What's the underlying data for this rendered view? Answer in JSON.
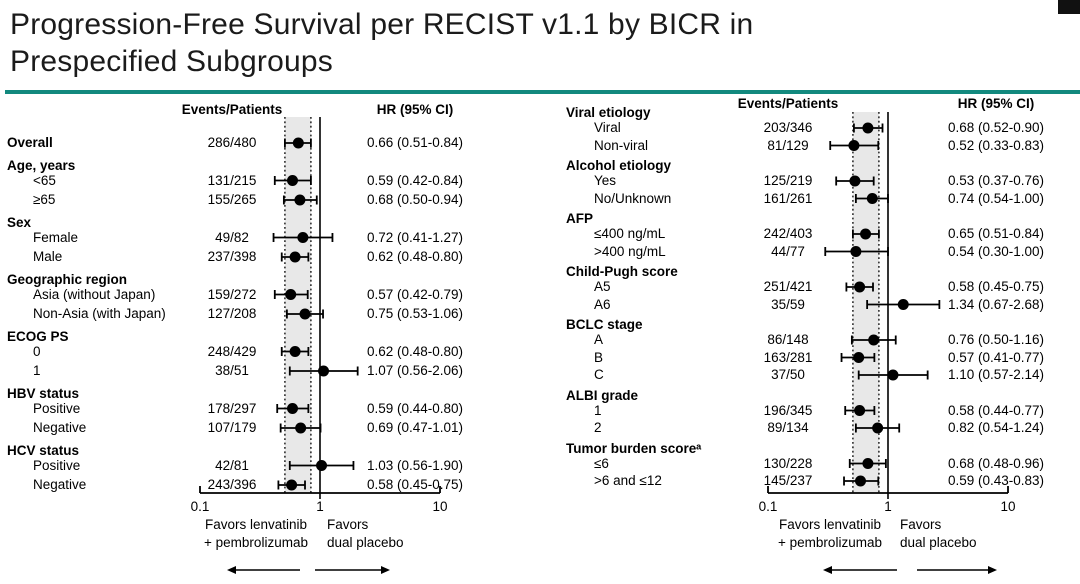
{
  "title_lines": [
    "Progression-Free Survival per RECIST v1.1 by BICR in",
    "Prespecified Subgroups"
  ],
  "accent_color": "#12897E",
  "chart_data": [
    {
      "type": "forest",
      "col_headers": {
        "events": "Events/Patients",
        "hr": "HR (95% CI)"
      },
      "x_scale": "log",
      "x_ticks": [
        "0.1",
        "1",
        "10"
      ],
      "xlim": [
        0.1,
        10
      ],
      "ref_line": 1,
      "shaded_band": [
        0.51,
        0.84
      ],
      "favors_left_lines": [
        "Favors lenvatinib",
        "+ pembrolizumab"
      ],
      "favors_right_lines": [
        "Favors",
        "dual placebo"
      ],
      "rows": [
        {
          "kind": "data-bold",
          "label": "Overall",
          "events": "286/480",
          "hr": 0.66,
          "ci": [
            0.51,
            0.84
          ],
          "hr_text": "0.66 (0.51-0.84)"
        },
        {
          "kind": "header",
          "label": "Age, years"
        },
        {
          "kind": "data",
          "label": "<65",
          "events": "131/215",
          "hr": 0.59,
          "ci": [
            0.42,
            0.84
          ],
          "hr_text": "0.59 (0.42-0.84)"
        },
        {
          "kind": "data",
          "label": "≥65",
          "events": "155/265",
          "hr": 0.68,
          "ci": [
            0.5,
            0.94
          ],
          "hr_text": "0.68 (0.50-0.94)"
        },
        {
          "kind": "header",
          "label": "Sex"
        },
        {
          "kind": "data",
          "label": "Female",
          "events": "49/82",
          "hr": 0.72,
          "ci": [
            0.41,
            1.27
          ],
          "hr_text": "0.72 (0.41-1.27)"
        },
        {
          "kind": "data",
          "label": "Male",
          "events": "237/398",
          "hr": 0.62,
          "ci": [
            0.48,
            0.8
          ],
          "hr_text": "0.62 (0.48-0.80)"
        },
        {
          "kind": "header",
          "label": "Geographic region"
        },
        {
          "kind": "data",
          "label": "Asia (without Japan)",
          "events": "159/272",
          "hr": 0.57,
          "ci": [
            0.42,
            0.79
          ],
          "hr_text": "0.57 (0.42-0.79)"
        },
        {
          "kind": "data",
          "label": "Non-Asia (with Japan)",
          "events": "127/208",
          "hr": 0.75,
          "ci": [
            0.53,
            1.06
          ],
          "hr_text": "0.75 (0.53-1.06)"
        },
        {
          "kind": "header",
          "label": "ECOG PS"
        },
        {
          "kind": "data",
          "label": "0",
          "events": "248/429",
          "hr": 0.62,
          "ci": [
            0.48,
            0.8
          ],
          "hr_text": "0.62 (0.48-0.80)"
        },
        {
          "kind": "data",
          "label": "1",
          "events": "38/51",
          "hr": 1.07,
          "ci": [
            0.56,
            2.06
          ],
          "hr_text": "1.07 (0.56-2.06)"
        },
        {
          "kind": "header",
          "label": "HBV status"
        },
        {
          "kind": "data",
          "label": "Positive",
          "events": "178/297",
          "hr": 0.59,
          "ci": [
            0.44,
            0.8
          ],
          "hr_text": "0.59 (0.44-0.80)"
        },
        {
          "kind": "data",
          "label": "Negative",
          "events": "107/179",
          "hr": 0.69,
          "ci": [
            0.47,
            1.01
          ],
          "hr_text": "0.69 (0.47-1.01)"
        },
        {
          "kind": "header",
          "label": "HCV status"
        },
        {
          "kind": "data",
          "label": "Positive",
          "events": "42/81",
          "hr": 1.03,
          "ci": [
            0.56,
            1.9
          ],
          "hr_text": "1.03 (0.56-1.90)"
        },
        {
          "kind": "data",
          "label": "Negative",
          "events": "243/396",
          "hr": 0.58,
          "ci": [
            0.45,
            0.75
          ],
          "hr_text": "0.58 (0.45-0.75)"
        }
      ]
    },
    {
      "type": "forest",
      "col_headers": {
        "events": "Events/Patients",
        "hr": "HR (95% CI)"
      },
      "x_scale": "log",
      "x_ticks": [
        "0.1",
        "1",
        "10"
      ],
      "xlim": [
        0.1,
        10
      ],
      "ref_line": 1,
      "shaded_band": [
        0.51,
        0.84
      ],
      "favors_left_lines": [
        "Favors lenvatinib",
        "+ pembrolizumab"
      ],
      "favors_right_lines": [
        "Favors",
        "dual placebo"
      ],
      "rows": [
        {
          "kind": "header",
          "label": "Viral etiology"
        },
        {
          "kind": "data",
          "label": "Viral",
          "events": "203/346",
          "hr": 0.68,
          "ci": [
            0.52,
            0.9
          ],
          "hr_text": "0.68 (0.52-0.90)"
        },
        {
          "kind": "data",
          "label": "Non-viral",
          "events": "81/129",
          "hr": 0.52,
          "ci": [
            0.33,
            0.83
          ],
          "hr_text": "0.52 (0.33-0.83)"
        },
        {
          "kind": "header",
          "label": "Alcohol etiology"
        },
        {
          "kind": "data",
          "label": "Yes",
          "events": "125/219",
          "hr": 0.53,
          "ci": [
            0.37,
            0.76
          ],
          "hr_text": "0.53 (0.37-0.76)"
        },
        {
          "kind": "data",
          "label": "No/Unknown",
          "events": "161/261",
          "hr": 0.74,
          "ci": [
            0.54,
            1.0
          ],
          "hr_text": "0.74 (0.54-1.00)"
        },
        {
          "kind": "header",
          "label": "AFP"
        },
        {
          "kind": "data",
          "label": "≤400 ng/mL",
          "events": "242/403",
          "hr": 0.65,
          "ci": [
            0.51,
            0.84
          ],
          "hr_text": "0.65 (0.51-0.84)"
        },
        {
          "kind": "data",
          "label": ">400 ng/mL",
          "events": "44/77",
          "hr": 0.54,
          "ci": [
            0.3,
            1.0
          ],
          "hr_text": "0.54 (0.30-1.00)"
        },
        {
          "kind": "header",
          "label": "Child-Pugh score"
        },
        {
          "kind": "data",
          "label": "A5",
          "events": "251/421",
          "hr": 0.58,
          "ci": [
            0.45,
            0.75
          ],
          "hr_text": "0.58 (0.45-0.75)"
        },
        {
          "kind": "data",
          "label": "A6",
          "events": "35/59",
          "hr": 1.34,
          "ci": [
            0.67,
            2.68
          ],
          "hr_text": "1.34 (0.67-2.68)"
        },
        {
          "kind": "header",
          "label": "BCLC stage"
        },
        {
          "kind": "data",
          "label": "A",
          "events": "86/148",
          "hr": 0.76,
          "ci": [
            0.5,
            1.16
          ],
          "hr_text": "0.76 (0.50-1.16)"
        },
        {
          "kind": "data",
          "label": "B",
          "events": "163/281",
          "hr": 0.57,
          "ci": [
            0.41,
            0.77
          ],
          "hr_text": "0.57 (0.41-0.77)"
        },
        {
          "kind": "data",
          "label": "C",
          "events": "37/50",
          "hr": 1.1,
          "ci": [
            0.57,
            2.14
          ],
          "hr_text": "1.10 (0.57-2.14)"
        },
        {
          "kind": "header",
          "label": "ALBI grade"
        },
        {
          "kind": "data",
          "label": "1",
          "events": "196/345",
          "hr": 0.58,
          "ci": [
            0.44,
            0.77
          ],
          "hr_text": "0.58 (0.44-0.77)"
        },
        {
          "kind": "data",
          "label": "2",
          "events": "89/134",
          "hr": 0.82,
          "ci": [
            0.54,
            1.24
          ],
          "hr_text": "0.82 (0.54-1.24)"
        },
        {
          "kind": "header",
          "label": "Tumor burden scoreᵃ"
        },
        {
          "kind": "data",
          "label": "≤6",
          "events": "130/228",
          "hr": 0.68,
          "ci": [
            0.48,
            0.96
          ],
          "hr_text": "0.68 (0.48-0.96)"
        },
        {
          "kind": "data",
          "label": ">6 and ≤12",
          "events": "145/237",
          "hr": 0.59,
          "ci": [
            0.43,
            0.83
          ],
          "hr_text": "0.59 (0.43-0.83)"
        }
      ]
    }
  ]
}
